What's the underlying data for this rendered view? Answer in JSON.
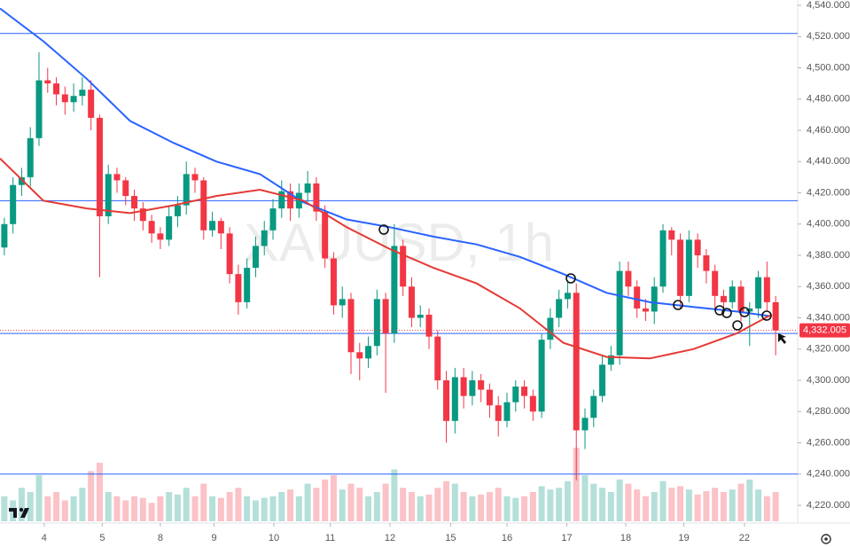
{
  "chart_data": {
    "type": "candlestick",
    "title": "XAUUSD, 1h",
    "x": [
      0.5,
      1.5,
      2.5,
      3.5,
      4.5,
      5.5,
      6.5,
      7.5,
      8.5,
      9.5,
      10.5,
      11.5,
      12.5,
      13.5,
      14.5,
      15.5,
      16.5,
      17.5,
      18.5,
      19.5,
      20.5,
      21.5,
      22.5,
      23.5,
      24.5,
      25.5,
      26.5,
      27.5,
      28.5,
      29.5,
      30.5,
      31.5,
      32.5,
      33.5,
      34.5,
      35.5,
      36.5,
      37.5,
      38.5,
      39.5,
      40.5,
      41.5,
      42.5,
      43.5,
      44.5,
      45.5,
      46.5,
      47.5,
      48.5,
      49.5,
      50.5,
      51.5,
      52.5,
      53.5,
      54.5,
      55.5,
      56.5,
      57.5,
      58.5,
      59.5,
      60.5,
      61.5,
      62.5,
      63.5,
      64.5,
      65.5,
      66.5,
      67.5,
      68.5,
      69.5,
      70.5,
      71.5,
      72.5,
      73.5,
      74.5,
      75.5,
      76.5,
      77.5,
      78.5,
      79.5,
      80.5,
      81.5,
      82.5,
      83.5,
      84.5,
      85.5,
      86.5,
      87.5,
      88.5,
      89.5
    ],
    "open": [
      4385,
      4400,
      4425,
      4430,
      4455,
      4492,
      4490,
      4483,
      4478,
      4482,
      4486,
      4468,
      4405,
      4432,
      4428,
      4418,
      4410,
      4402,
      4394,
      4390,
      4405,
      4412,
      4432,
      4428,
      4396,
      4402,
      4394,
      4368,
      4350,
      4372,
      4386,
      4396,
      4410,
      4421,
      4410,
      4420,
      4426,
      4408,
      4378,
      4348,
      4352,
      4318,
      4314,
      4322,
      4352,
      4330,
      4386,
      4360,
      4340,
      4342,
      4328,
      4300,
      4274,
      4302,
      4290,
      4300,
      4294,
      4284,
      4274,
      4286,
      4296,
      4290,
      4280,
      4326,
      4340,
      4352,
      4356,
      4268,
      4276,
      4290,
      4310,
      4316,
      4370,
      4360,
      4346,
      4344,
      4360,
      4396,
      4390,
      4354,
      4390,
      4380,
      4370,
      4354,
      4350,
      4360,
      4344,
      4346,
      4366,
      4350
    ],
    "high": [
      4404,
      4430,
      4436,
      4462,
      4510,
      4500,
      4494,
      4488,
      4490,
      4494,
      4492,
      4470,
      4438,
      4436,
      4430,
      4422,
      4414,
      4406,
      4398,
      4412,
      4418,
      4440,
      4436,
      4430,
      4408,
      4404,
      4398,
      4374,
      4378,
      4392,
      4402,
      4416,
      4428,
      4426,
      4426,
      4434,
      4430,
      4412,
      4382,
      4360,
      4356,
      4324,
      4328,
      4358,
      4356,
      4400,
      4390,
      4366,
      4348,
      4346,
      4332,
      4306,
      4308,
      4308,
      4306,
      4304,
      4298,
      4290,
      4292,
      4300,
      4300,
      4294,
      4330,
      4346,
      4358,
      4364,
      4362,
      4282,
      4294,
      4316,
      4322,
      4376,
      4376,
      4364,
      4352,
      4366,
      4400,
      4398,
      4394,
      4396,
      4394,
      4384,
      4374,
      4358,
      4364,
      4364,
      4350,
      4370,
      4376,
      4354
    ],
    "low": [
      4380,
      4394,
      4418,
      4424,
      4450,
      4484,
      4476,
      4470,
      4472,
      4476,
      4460,
      4366,
      4400,
      4420,
      4412,
      4402,
      4396,
      4388,
      4384,
      4386,
      4398,
      4406,
      4420,
      4390,
      4392,
      4384,
      4362,
      4342,
      4346,
      4366,
      4380,
      4390,
      4404,
      4402,
      4404,
      4414,
      4402,
      4372,
      4342,
      4340,
      4304,
      4300,
      4308,
      4316,
      4292,
      4324,
      4354,
      4334,
      4334,
      4320,
      4294,
      4260,
      4266,
      4282,
      4284,
      4286,
      4276,
      4264,
      4270,
      4280,
      4282,
      4274,
      4276,
      4320,
      4334,
      4346,
      4236,
      4256,
      4270,
      4286,
      4306,
      4310,
      4354,
      4340,
      4338,
      4336,
      4356,
      4380,
      4346,
      4350,
      4372,
      4362,
      4346,
      4342,
      4346,
      4338,
      4322,
      4340,
      4344,
      4316
    ],
    "close": [
      4400,
      4425,
      4430,
      4455,
      4492,
      4490,
      4483,
      4478,
      4482,
      4486,
      4468,
      4405,
      4432,
      4428,
      4418,
      4410,
      4402,
      4394,
      4390,
      4405,
      4412,
      4432,
      4428,
      4396,
      4402,
      4394,
      4368,
      4350,
      4372,
      4386,
      4396,
      4410,
      4421,
      4410,
      4420,
      4426,
      4408,
      4378,
      4348,
      4352,
      4318,
      4314,
      4322,
      4352,
      4330,
      4386,
      4360,
      4340,
      4342,
      4328,
      4300,
      4274,
      4302,
      4290,
      4300,
      4294,
      4284,
      4274,
      4286,
      4296,
      4290,
      4280,
      4326,
      4340,
      4352,
      4356,
      4268,
      4276,
      4290,
      4310,
      4316,
      4370,
      4360,
      4346,
      4344,
      4360,
      4396,
      4390,
      4354,
      4390,
      4380,
      4370,
      4354,
      4350,
      4360,
      4344,
      4346,
      4366,
      4350,
      4332
    ],
    "volume": [
      30,
      25,
      40,
      35,
      55,
      30,
      35,
      25,
      30,
      40,
      60,
      70,
      35,
      30,
      25,
      30,
      28,
      22,
      30,
      35,
      32,
      40,
      30,
      45,
      30,
      28,
      35,
      40,
      30,
      25,
      28,
      30,
      35,
      38,
      30,
      45,
      40,
      50,
      55,
      38,
      45,
      40,
      30,
      35,
      45,
      62,
      40,
      35,
      30,
      32,
      40,
      48,
      45,
      35,
      30,
      32,
      35,
      40,
      30,
      28,
      30,
      35,
      42,
      38,
      40,
      48,
      88,
      55,
      45,
      40,
      35,
      50,
      45,
      38,
      30,
      35,
      48,
      40,
      42,
      38,
      32,
      36,
      40,
      35,
      38,
      45,
      50,
      38,
      30,
      35
    ],
    "up_color": "#089981",
    "down_color": "#f23645",
    "ma": [
      {
        "color": "#2962ff",
        "x": [
          0,
          5,
          10,
          15,
          20,
          25,
          30,
          35,
          40,
          45,
          50,
          55,
          60,
          65,
          70,
          75,
          80,
          85,
          89
        ],
        "values": [
          4538,
          4517,
          4493,
          4466,
          4452,
          4440,
          4432,
          4414,
          4403,
          4398,
          4392,
          4387,
          4379,
          4368,
          4356,
          4350,
          4347,
          4344,
          4341
        ]
      },
      {
        "color": "#e53935",
        "x": [
          0,
          5,
          10,
          15,
          20,
          25,
          30,
          35,
          40,
          45,
          50,
          55,
          60,
          65,
          70,
          75,
          80,
          85,
          89
        ],
        "values": [
          4442,
          4415,
          4410,
          4407,
          4412,
          4418,
          4422,
          4415,
          4398,
          4384,
          4372,
          4362,
          4346,
          4324,
          4315,
          4314,
          4320,
          4330,
          4342
        ]
      }
    ],
    "levels": [
      4522,
      4415,
      4330,
      4240
    ],
    "levels_color": "#2962ff",
    "last_price": {
      "value": 4332.005,
      "label": "4,332.005"
    },
    "ylim": [
      4220,
      4540
    ],
    "yticks": [
      {
        "value": 4220,
        "label": "4,220.000"
      },
      {
        "value": 4240,
        "label": "4,240.000"
      },
      {
        "value": 4260,
        "label": "4,260.000"
      },
      {
        "value": 4280,
        "label": "4,280.000"
      },
      {
        "value": 4300,
        "label": "4,300.000"
      },
      {
        "value": 4320,
        "label": "4,320.000"
      },
      {
        "value": 4340,
        "label": "4,340.000"
      },
      {
        "value": 4360,
        "label": "4,360.000"
      },
      {
        "value": 4380,
        "label": "4,380.000"
      },
      {
        "value": 4400,
        "label": "4,400.000"
      },
      {
        "value": 4420,
        "label": "4,420.000"
      },
      {
        "value": 4440,
        "label": "4,440.000"
      },
      {
        "value": 4460,
        "label": "4,460.000"
      },
      {
        "value": 4480,
        "label": "4,480.000"
      },
      {
        "value": 4500,
        "label": "4,500.000"
      },
      {
        "value": 4520,
        "label": "4,520.000"
      },
      {
        "value": 4540,
        "label": "4,540.000"
      }
    ],
    "xlim": [
      0,
      90
    ],
    "xticks": [
      {
        "value": 5.1,
        "label": "4"
      },
      {
        "value": 11.8,
        "label": "5"
      },
      {
        "value": 18.5,
        "label": "8"
      },
      {
        "value": 24.7,
        "label": "9"
      },
      {
        "value": 31.6,
        "label": "10"
      },
      {
        "value": 38.1,
        "label": "11"
      },
      {
        "value": 45,
        "label": "12"
      },
      {
        "value": 52,
        "label": "15"
      },
      {
        "value": 58.5,
        "label": "16"
      },
      {
        "value": 65.4,
        "label": "17"
      },
      {
        "value": 72.2,
        "label": "18"
      },
      {
        "value": 78.9,
        "label": "19"
      },
      {
        "value": 85.9,
        "label": "22"
      }
    ]
  }
}
